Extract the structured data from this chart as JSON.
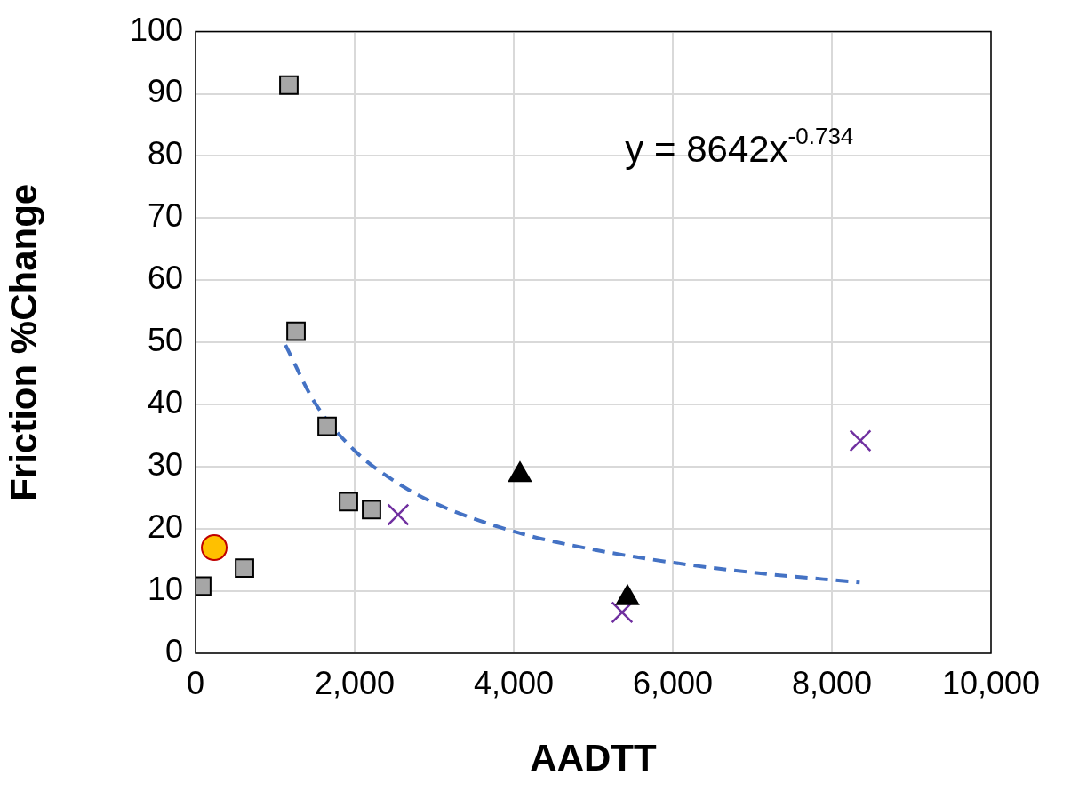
{
  "chart_data": {
    "type": "scatter",
    "xlabel": "AADTT",
    "ylabel": "Friction %Change",
    "xlim": [
      0,
      10000
    ],
    "xticks": [
      {
        "value": 0,
        "label": "0"
      },
      {
        "value": 2000,
        "label": "2,000"
      },
      {
        "value": 4000,
        "label": "4,000"
      },
      {
        "value": 6000,
        "label": "6,000"
      },
      {
        "value": 8000,
        "label": "8,000"
      },
      {
        "value": 10000,
        "label": "10,000"
      }
    ],
    "ylim": [
      0,
      100
    ],
    "yticks": [
      0,
      10,
      20,
      30,
      40,
      50,
      60,
      70,
      80,
      90,
      100
    ],
    "grid": true,
    "legend": false,
    "annotations": [
      "y = 8642x$^{-0.734}$"
    ],
    "series": [
      {
        "type": "scatter",
        "marker": "square",
        "color": "#a6a6a6",
        "x": [
          1173,
          1263,
          1654,
          1922,
          2212,
          615,
          78
        ],
        "values": [
          91.4,
          51.8,
          36.5,
          24.4,
          23.1,
          13.7,
          10.8
        ]
      },
      {
        "type": "scatter",
        "marker": "circle",
        "color": "#ffc000",
        "x": [
          235
        ],
        "values": [
          17.0
        ]
      },
      {
        "type": "scatter",
        "marker": "triangle",
        "color": "#000000",
        "x": [
          4078,
          5430
        ],
        "values": [
          28.7,
          8.9
        ]
      },
      {
        "type": "scatter",
        "marker": "cross",
        "color": "#7030a0",
        "x": [
          2547,
          5363,
          8358
        ],
        "values": [
          22.3,
          6.6,
          34.2
        ]
      },
      {
        "type": "line",
        "marker": "none",
        "line_style": "dashed",
        "color": "#4472c4",
        "x": [
          1130,
          1500,
          2000,
          2500,
          3000,
          4000,
          5000,
          6000,
          7000,
          8350
        ],
        "values": [
          49.6,
          40.3,
          32.6,
          27.7,
          24.2,
          19.6,
          16.7,
          14.6,
          13.0,
          11.4
        ]
      }
    ]
  }
}
